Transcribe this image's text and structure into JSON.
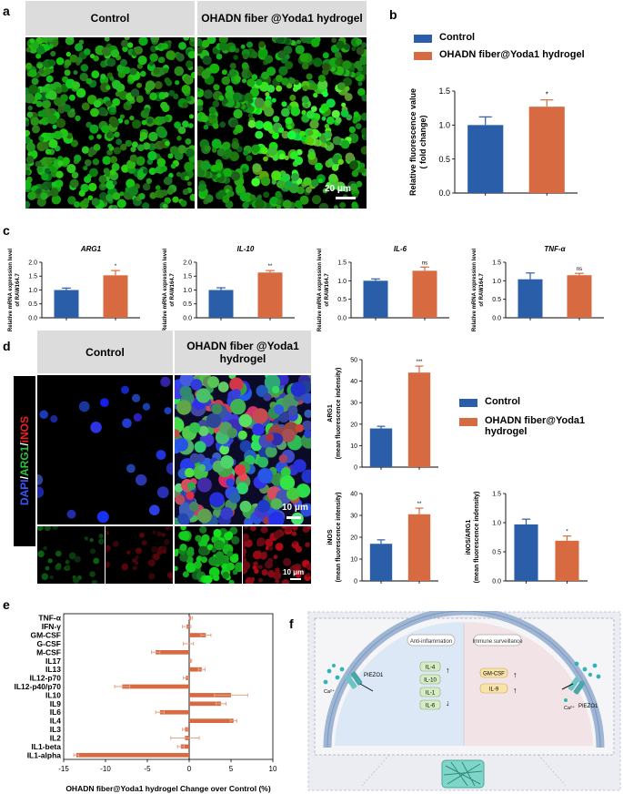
{
  "panel_labels": {
    "a": "a",
    "b": "b",
    "c": "c",
    "d": "d",
    "e": "e",
    "f": "f"
  },
  "panel_a": {
    "control_label": "Control",
    "treated_label": "OHADN fiber @Yoda1 hydrogel",
    "scale_bar": "20 μm"
  },
  "panel_d": {
    "control_label": "Control",
    "treated_label": "OHADN fiber @Yoda1 hydrogel",
    "stain_parts": [
      "DAPI",
      "/",
      "ARG1",
      "/",
      "iNOS"
    ],
    "scale_main": "10 μm",
    "scale_small": "10 μm"
  },
  "colors": {
    "control": "#2a5ea8",
    "treated": "#d86a41",
    "error": "#e0a48a"
  },
  "legend": {
    "control": "Control",
    "treated": "OHADN fiber@Yoda1 hydrogel"
  },
  "chart_data": [
    {
      "id": "b",
      "type": "bar",
      "categories": [
        "Control",
        "OHADN fiber@Yoda1 hydrogel"
      ],
      "values": [
        1.0,
        1.27
      ],
      "errors": [
        0.12,
        0.1
      ],
      "sig": [
        "",
        "*"
      ],
      "ylabel": "Relative fluorescence value",
      "ylabel2": "( fold change)",
      "ylim": [
        0,
        1.5
      ],
      "yticks": [
        "0.0",
        "0.5",
        "1.0",
        "1.5"
      ]
    },
    {
      "id": "c1",
      "type": "bar",
      "title": "ARG1",
      "categories": [
        "Control",
        "OHADN fiber@Yoda1 hydrogel"
      ],
      "values": [
        1.0,
        1.53
      ],
      "errors": [
        0.07,
        0.17
      ],
      "sig": [
        "",
        "*"
      ],
      "ylabel": "Relative mRNA expression level",
      "ylabel2": "of RAW164.7",
      "ylim": [
        0,
        2.0
      ],
      "yticks": [
        "0.0",
        "0.5",
        "1.0",
        "1.5",
        "2.0"
      ]
    },
    {
      "id": "c2",
      "type": "bar",
      "title": "IL-10",
      "categories": [
        "Control",
        "OHADN fiber@Yoda1 hydrogel"
      ],
      "values": [
        1.0,
        1.63
      ],
      "errors": [
        0.08,
        0.07
      ],
      "sig": [
        "",
        "**"
      ],
      "ylabel": "Relative mRNA expression level",
      "ylabel2": "of RAW164.7",
      "ylim": [
        0,
        2.0
      ],
      "yticks": [
        "0.0",
        "0.5",
        "1.0",
        "1.5",
        "2.0"
      ]
    },
    {
      "id": "c3",
      "type": "bar",
      "title": "IL-6",
      "categories": [
        "Control",
        "OHADN fiber@Yoda1 hydrogel"
      ],
      "values": [
        1.0,
        1.27
      ],
      "errors": [
        0.05,
        0.1
      ],
      "sig": [
        "",
        "ns"
      ],
      "ylabel": "Relative mRNA expression level",
      "ylabel2": "of RAW164.7",
      "ylim": [
        0,
        1.5
      ],
      "yticks": [
        "0.0",
        "0.5",
        "1.0",
        "1.5"
      ]
    },
    {
      "id": "c4",
      "type": "bar",
      "title": "TNF-α",
      "categories": [
        "Control",
        "OHADN fiber@Yoda1 hydrogel"
      ],
      "values": [
        1.04,
        1.15
      ],
      "errors": [
        0.17,
        0.05
      ],
      "sig": [
        "",
        "ns"
      ],
      "ylabel": "Relative mRNA expression level",
      "ylabel2": "of RAW164.7",
      "ylim": [
        0,
        1.5
      ],
      "yticks": [
        "0.0",
        "0.5",
        "1.0",
        "1.5"
      ]
    },
    {
      "id": "d1",
      "type": "bar",
      "categories": [
        "Control",
        "OHADN fiber@Yoda1 hydrogel"
      ],
      "values": [
        18,
        44
      ],
      "errors": [
        1,
        3
      ],
      "sig": [
        "",
        "***"
      ],
      "ylabel": "ARG1",
      "ylabel2": "(mean fluorescence indensity)",
      "ylim": [
        0,
        50
      ],
      "yticks": [
        "0",
        "10",
        "20",
        "30",
        "40",
        "50"
      ]
    },
    {
      "id": "d2",
      "type": "bar",
      "categories": [
        "Control",
        "OHADN fiber@Yoda1 hydrogel"
      ],
      "values": [
        17,
        30.5
      ],
      "errors": [
        1.8,
        2.8
      ],
      "sig": [
        "",
        "**"
      ],
      "ylabel": "iNOS",
      "ylabel2": "(mean fluorescence intensity)",
      "ylim": [
        0,
        40
      ],
      "yticks": [
        "0",
        "10",
        "20",
        "30",
        "40"
      ]
    },
    {
      "id": "d3",
      "type": "bar",
      "categories": [
        "Control",
        "OHADN fiber@Yoda1 hydrogel"
      ],
      "values": [
        0.97,
        0.69
      ],
      "errors": [
        0.09,
        0.08
      ],
      "sig": [
        "",
        "*"
      ],
      "ylabel": "iNOS/ARG1",
      "ylabel2": "(mean fluorescence indensity)",
      "ylim": [
        0,
        1.5
      ],
      "yticks": [
        "0.0",
        "0.5",
        "1.0",
        "1.5"
      ]
    },
    {
      "id": "e",
      "type": "bar",
      "orientation": "horizontal",
      "categories": [
        "TNF-α",
        "IFN-γ",
        "GM-CSF",
        "G-CSF",
        "M-CSF",
        "IL17",
        "IL13",
        "IL12-p70",
        "IL12-p40/p70",
        "IL10",
        "IL9",
        "IL6",
        "IL4",
        "IL3",
        "IL2",
        "IL1-beta",
        "IL1-alpha"
      ],
      "values": [
        0.2,
        -0.3,
        2.0,
        -0.1,
        -4.0,
        0.2,
        1.5,
        -0.4,
        -8.0,
        5.0,
        3.8,
        -3.5,
        5.3,
        -0.5,
        -0.5,
        -1.0,
        -13.5
      ],
      "errors": [
        0.2,
        0.5,
        0.6,
        0.6,
        0.5,
        0.1,
        0.4,
        0.3,
        0.9,
        2.0,
        0.6,
        0.5,
        0.4,
        0.3,
        1.7,
        0.4,
        0.3
      ],
      "xlabel": "OHADN fiber@Yoda1 hydrogel Change over Control (%)",
      "xlim": [
        -15,
        10
      ],
      "xticks": [
        "-15",
        "-10",
        "-5",
        "0",
        "5",
        "10"
      ]
    }
  ],
  "panel_f": {
    "anti": "Anti-inflammation",
    "immune": "Immune surveillance",
    "left_items": [
      "IL-4",
      "IL-10",
      "IL-1",
      "IL-6"
    ],
    "right_items": [
      "GM-CSF",
      "IL-9"
    ],
    "piezo_left": "PIEZO1",
    "piezo_right": "PIEZO1",
    "ca_left": "Ca²⁺",
    "ca_right": "Ca²⁺",
    "up": "↑",
    "down": "↓"
  }
}
